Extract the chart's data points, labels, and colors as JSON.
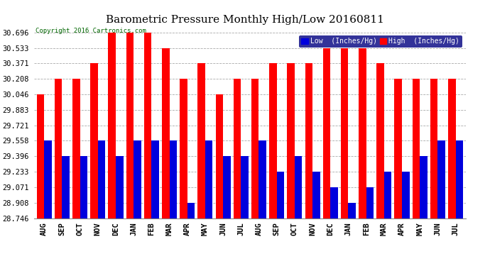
{
  "title": "Barometric Pressure Monthly High/Low 20160811",
  "copyright": "Copyright 2016 Cartronics.com",
  "months": [
    "AUG",
    "SEP",
    "OCT",
    "NOV",
    "DEC",
    "JAN",
    "FEB",
    "MAR",
    "APR",
    "MAY",
    "JUN",
    "JUL",
    "AUG",
    "SEP",
    "OCT",
    "NOV",
    "DEC",
    "JAN",
    "FEB",
    "MAR",
    "APR",
    "MAY",
    "JUN",
    "JUL"
  ],
  "high_values": [
    30.046,
    30.208,
    30.208,
    30.371,
    30.696,
    30.696,
    30.696,
    30.533,
    30.208,
    30.371,
    30.046,
    30.208,
    30.208,
    30.371,
    30.371,
    30.371,
    30.533,
    30.533,
    30.533,
    30.371,
    30.208,
    30.208,
    30.208,
    30.208
  ],
  "low_values": [
    29.558,
    29.396,
    29.396,
    29.558,
    29.396,
    29.558,
    29.558,
    29.558,
    28.908,
    29.558,
    29.396,
    29.396,
    29.558,
    29.233,
    29.396,
    29.233,
    29.071,
    28.908,
    29.071,
    29.233,
    29.233,
    29.396,
    29.558,
    29.558
  ],
  "high_color": "#ff0000",
  "low_color": "#0000dd",
  "bg_color": "#ffffff",
  "grid_color": "#aaaaaa",
  "ymin": 28.746,
  "ymax": 30.696,
  "yticks": [
    28.746,
    28.908,
    29.071,
    29.233,
    29.396,
    29.558,
    29.721,
    29.883,
    30.046,
    30.208,
    30.371,
    30.533,
    30.696
  ],
  "bar_width": 0.42,
  "title_fontsize": 11,
  "tick_fontsize": 7.5,
  "copyright_color": "#006600",
  "copyright_fontsize": 6.5,
  "legend_label_low": "Low  (Inches/Hg)",
  "legend_label_high": "High  (Inches/Hg)",
  "legend_bg": "#000080"
}
